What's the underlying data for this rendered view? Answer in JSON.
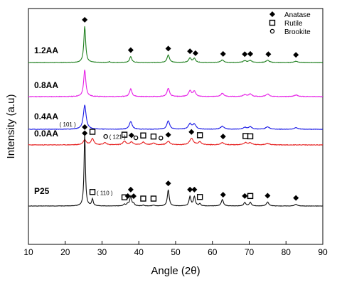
{
  "chart_data": {
    "type": "line",
    "title": "",
    "xlabel": "Angle (2θ)",
    "ylabel": "Intensity (a.u)",
    "xlim": [
      10,
      90
    ],
    "xticks": [
      10,
      20,
      30,
      40,
      50,
      60,
      70,
      80,
      90
    ],
    "grid": false,
    "legend_position": "top-right",
    "legend": [
      {
        "marker": "diamond",
        "label": "Anatase"
      },
      {
        "marker": "square",
        "label": "Rutile"
      },
      {
        "marker": "circle",
        "label": "Brookite"
      }
    ],
    "annotations": [
      {
        "text": "( 101 )",
        "x": 25.3,
        "series": "P25"
      },
      {
        "text": "( 110 )",
        "x": 27.4,
        "series": "P25"
      },
      {
        "text": "( 121 )",
        "x": 30.8,
        "series": "0.0AA"
      }
    ],
    "series": [
      {
        "name": "1.2AA",
        "color": "#1e7f1e",
        "baseline": 0,
        "noise": 0.4,
        "seed": 7,
        "peaks": [
          [
            25.3,
            73,
            0.3
          ],
          [
            32.0,
            1.5,
            0.3
          ],
          [
            37.8,
            12,
            0.35
          ],
          [
            48.0,
            15,
            0.4
          ],
          [
            53.9,
            9,
            0.4
          ],
          [
            55.1,
            8,
            0.4
          ],
          [
            62.7,
            5,
            0.5
          ],
          [
            68.8,
            3.5,
            0.5
          ],
          [
            70.3,
            4,
            0.5
          ],
          [
            75.0,
            4.5,
            0.5
          ],
          [
            82.7,
            2.5,
            0.6
          ]
        ],
        "markers": [
          {
            "x": 25.3,
            "type": "diamond"
          },
          {
            "x": 37.8,
            "type": "diamond"
          },
          {
            "x": 48.0,
            "type": "diamond"
          },
          {
            "x": 53.9,
            "type": "diamond"
          },
          {
            "x": 55.4,
            "type": "diamond"
          },
          {
            "x": 62.9,
            "type": "diamond"
          },
          {
            "x": 68.8,
            "type": "diamond"
          },
          {
            "x": 70.3,
            "type": "diamond"
          },
          {
            "x": 75.2,
            "type": "diamond"
          },
          {
            "x": 82.7,
            "type": "diamond"
          }
        ]
      },
      {
        "name": "0.8AA",
        "color": "#e61ee6",
        "baseline": 0,
        "noise": 0.4,
        "seed": 11,
        "peaks": [
          [
            25.3,
            42,
            0.35
          ],
          [
            37.8,
            12,
            0.4
          ],
          [
            48.0,
            13,
            0.4
          ],
          [
            53.9,
            9,
            0.45
          ],
          [
            55.1,
            8,
            0.45
          ],
          [
            62.7,
            5,
            0.5
          ],
          [
            68.8,
            3,
            0.5
          ],
          [
            70.3,
            4,
            0.5
          ],
          [
            75.0,
            4,
            0.55
          ],
          [
            82.7,
            2.5,
            0.6
          ]
        ],
        "markers": []
      },
      {
        "name": "0.4AA",
        "color": "#1a1ae6",
        "baseline": 0,
        "noise": 0.4,
        "seed": 19,
        "peaks": [
          [
            25.3,
            40,
            0.45
          ],
          [
            37.8,
            13,
            0.45
          ],
          [
            48.0,
            14,
            0.45
          ],
          [
            53.9,
            9,
            0.5
          ],
          [
            55.1,
            8,
            0.5
          ],
          [
            62.7,
            5,
            0.55
          ],
          [
            68.8,
            3,
            0.55
          ],
          [
            70.3,
            4,
            0.55
          ],
          [
            75.0,
            4,
            0.6
          ],
          [
            82.7,
            2.5,
            0.6
          ]
        ],
        "markers": []
      },
      {
        "name": "0.0AA",
        "color": "#e62020",
        "baseline": 0,
        "noise": 0.4,
        "seed": 23,
        "peaks": [
          [
            25.3,
            7,
            0.5
          ],
          [
            27.4,
            9,
            0.45
          ],
          [
            30.8,
            3,
            0.5
          ],
          [
            36.1,
            5,
            0.5
          ],
          [
            38.0,
            4,
            0.5
          ],
          [
            41.2,
            4,
            0.5
          ],
          [
            44.0,
            2.5,
            0.5
          ],
          [
            48.0,
            5,
            0.55
          ],
          [
            54.3,
            9,
            0.6
          ],
          [
            56.6,
            4,
            0.55
          ],
          [
            62.7,
            3,
            0.6
          ],
          [
            69.0,
            3,
            0.6
          ],
          [
            70.3,
            2.5,
            0.6
          ],
          [
            75.0,
            2,
            0.6
          ]
        ],
        "markers": [
          {
            "x": 25.3,
            "type": "diamond"
          },
          {
            "x": 27.4,
            "type": "square"
          },
          {
            "x": 31.0,
            "type": "circle"
          },
          {
            "x": 36.1,
            "type": "square"
          },
          {
            "x": 38.0,
            "type": "diamond"
          },
          {
            "x": 39.2,
            "type": "circle"
          },
          {
            "x": 41.2,
            "type": "square"
          },
          {
            "x": 44.0,
            "type": "square"
          },
          {
            "x": 46.0,
            "type": "circle"
          },
          {
            "x": 48.0,
            "type": "diamond"
          },
          {
            "x": 54.3,
            "type": "diamond"
          },
          {
            "x": 56.6,
            "type": "square"
          },
          {
            "x": 62.9,
            "type": "diamond"
          },
          {
            "x": 69.0,
            "type": "square"
          },
          {
            "x": 70.3,
            "type": "square"
          }
        ]
      },
      {
        "name": "P25",
        "color": "#111111",
        "baseline": 0,
        "noise": 0.4,
        "seed": 31,
        "peaks": [
          [
            25.3,
            170,
            0.22
          ],
          [
            27.4,
            16,
            0.25
          ],
          [
            36.1,
            4,
            0.3
          ],
          [
            37.0,
            5,
            0.3
          ],
          [
            37.8,
            22,
            0.3
          ],
          [
            38.6,
            5,
            0.3
          ],
          [
            41.2,
            2,
            0.3
          ],
          [
            44.0,
            2,
            0.3
          ],
          [
            48.0,
            38,
            0.3
          ],
          [
            53.9,
            22,
            0.3
          ],
          [
            55.1,
            22,
            0.3
          ],
          [
            56.6,
            5,
            0.3
          ],
          [
            62.7,
            15,
            0.35
          ],
          [
            68.8,
            8,
            0.35
          ],
          [
            70.3,
            8,
            0.35
          ],
          [
            75.0,
            9,
            0.4
          ],
          [
            82.7,
            4,
            0.45
          ]
        ],
        "markers": [
          {
            "x": 25.3,
            "type": "diamond"
          },
          {
            "x": 27.4,
            "type": "square"
          },
          {
            "x": 36.1,
            "type": "square"
          },
          {
            "x": 37.0,
            "type": "diamond"
          },
          {
            "x": 37.8,
            "type": "diamond"
          },
          {
            "x": 38.6,
            "type": "diamond"
          },
          {
            "x": 41.2,
            "type": "square"
          },
          {
            "x": 44.0,
            "type": "square"
          },
          {
            "x": 48.0,
            "type": "diamond"
          },
          {
            "x": 53.9,
            "type": "diamond"
          },
          {
            "x": 55.1,
            "type": "diamond"
          },
          {
            "x": 56.6,
            "type": "square"
          },
          {
            "x": 62.9,
            "type": "diamond"
          },
          {
            "x": 68.8,
            "type": "diamond"
          },
          {
            "x": 70.3,
            "type": "square"
          },
          {
            "x": 75.0,
            "type": "diamond"
          },
          {
            "x": 82.7,
            "type": "diamond"
          }
        ]
      }
    ]
  }
}
